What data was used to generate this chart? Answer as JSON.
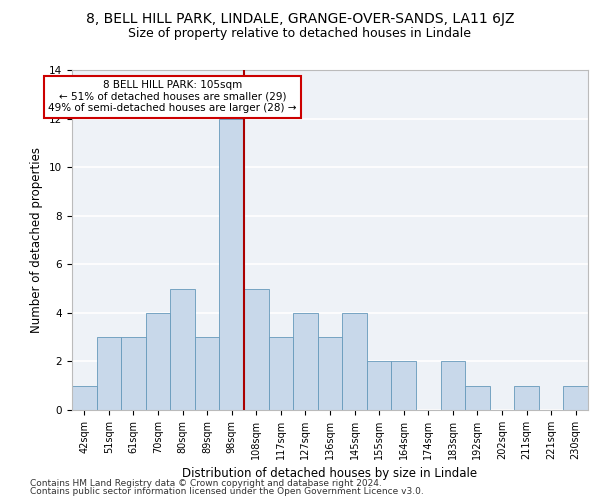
{
  "title_line1": "8, BELL HILL PARK, LINDALE, GRANGE-OVER-SANDS, LA11 6JZ",
  "title_line2": "Size of property relative to detached houses in Lindale",
  "xlabel": "Distribution of detached houses by size in Lindale",
  "ylabel": "Number of detached properties",
  "categories": [
    "42sqm",
    "51sqm",
    "61sqm",
    "70sqm",
    "80sqm",
    "89sqm",
    "98sqm",
    "108sqm",
    "117sqm",
    "127sqm",
    "136sqm",
    "145sqm",
    "155sqm",
    "164sqm",
    "174sqm",
    "183sqm",
    "192sqm",
    "202sqm",
    "211sqm",
    "221sqm",
    "230sqm"
  ],
  "values": [
    1,
    3,
    3,
    4,
    5,
    3,
    12,
    5,
    3,
    4,
    3,
    4,
    2,
    2,
    0,
    2,
    1,
    0,
    1,
    0,
    1
  ],
  "bar_color": "#c8d8ea",
  "bar_edge_color": "#6699bb",
  "vline_x": 6.5,
  "vline_color": "#aa0000",
  "annotation_text": "8 BELL HILL PARK: 105sqm\n← 51% of detached houses are smaller (29)\n49% of semi-detached houses are larger (28) →",
  "annotation_box_color": "#ffffff",
  "annotation_box_edge": "#cc0000",
  "ylim": [
    0,
    14
  ],
  "yticks": [
    0,
    2,
    4,
    6,
    8,
    10,
    12,
    14
  ],
  "footer_line1": "Contains HM Land Registry data © Crown copyright and database right 2024.",
  "footer_line2": "Contains public sector information licensed under the Open Government Licence v3.0.",
  "bg_color": "#ffffff",
  "plot_bg_color": "#eef2f7",
  "grid_color": "#ffffff",
  "title1_fontsize": 10,
  "title2_fontsize": 9,
  "axis_label_fontsize": 8.5,
  "tick_fontsize": 7,
  "annotation_fontsize": 7.5,
  "footer_fontsize": 6.5
}
